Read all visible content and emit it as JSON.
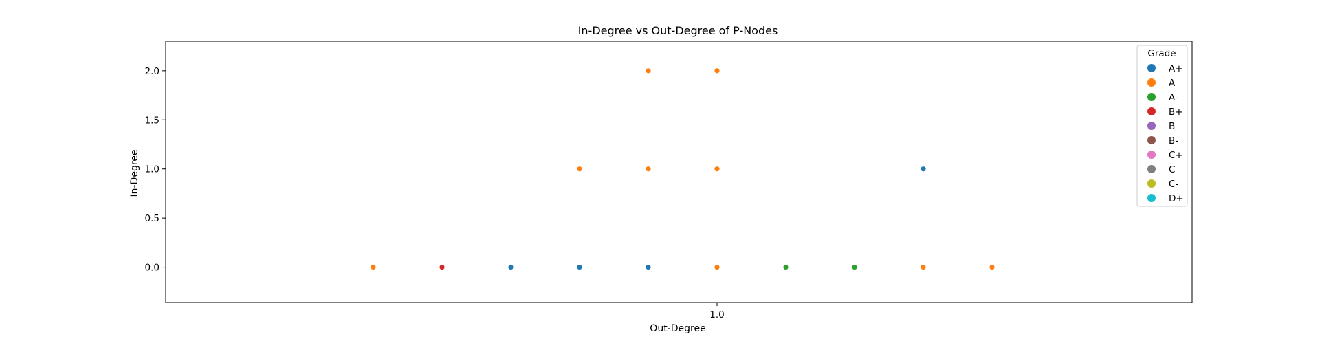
{
  "chart_data": {
    "type": "scatter",
    "title": "In-Degree vs Out-Degree of P-Nodes",
    "xlabel": "Out-Degree",
    "ylabel": "In-Degree",
    "xticks": [
      "1.0"
    ],
    "yticks": [
      "0.0",
      "0.5",
      "1.0",
      "1.5",
      "2.0"
    ],
    "yrange": [
      -0.36,
      2.3
    ],
    "legend_title": "Grade",
    "legend_position": "top-right",
    "grid": false,
    "series": [
      {
        "name": "A+",
        "color": "#1f77b4",
        "points": [
          {
            "x": "",
            "y": 0.0
          },
          {
            "x": "",
            "y": 0.0
          },
          {
            "x": "",
            "y": 0.0
          },
          {
            "x": "",
            "y": 1.0
          }
        ]
      },
      {
        "name": "A",
        "color": "#ff7f0e",
        "points": [
          {
            "x": "",
            "y": 0.0
          },
          {
            "x": "1.0",
            "y": 0.0
          },
          {
            "x": "",
            "y": 0.0
          },
          {
            "x": "",
            "y": 0.0
          },
          {
            "x": "",
            "y": 1.0
          },
          {
            "x": "",
            "y": 1.0
          },
          {
            "x": "1.0",
            "y": 1.0
          },
          {
            "x": "",
            "y": 2.0
          },
          {
            "x": "1.0",
            "y": 2.0
          }
        ]
      },
      {
        "name": "A-",
        "color": "#2ca02c",
        "points": [
          {
            "x": "",
            "y": 0.0
          },
          {
            "x": "",
            "y": 0.0
          }
        ]
      },
      {
        "name": "B+",
        "color": "#d62728",
        "points": [
          {
            "x": "",
            "y": 0.0
          }
        ]
      },
      {
        "name": "B",
        "color": "#9467bd",
        "points": []
      },
      {
        "name": "B-",
        "color": "#8c564b",
        "points": []
      },
      {
        "name": "C+",
        "color": "#e377c2",
        "points": []
      },
      {
        "name": "C",
        "color": "#7f7f7f",
        "points": []
      },
      {
        "name": "C-",
        "color": "#bcbd22",
        "points": []
      },
      {
        "name": "D+",
        "color": "#17becf",
        "points": []
      }
    ]
  }
}
